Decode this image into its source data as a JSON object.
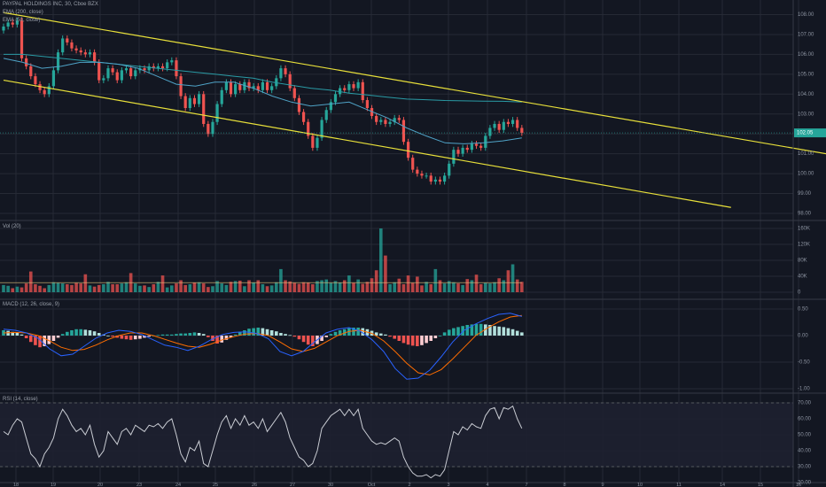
{
  "header": {
    "symbol_line": "PAYPAL HOLDINGS INC, 30, Cboe BZX",
    "ema200_label": "EMA (200, close)",
    "ema50_label": "EMA (50, close)",
    "vol_label": "Vol (20)",
    "macd_label": "MACD (12, 26, close, 9)",
    "rsi_label": "RSI (14, close)"
  },
  "colors": {
    "background": "#131722",
    "grid": "#262a35",
    "up": "#26a69a",
    "down": "#ef5350",
    "channel": "#e8e03a",
    "ema200": "#2a9ba5",
    "ema50": "#4fa3c7",
    "macd_line": "#2962ff",
    "signal_line": "#ff6d00",
    "rsi_line": "#c9ccd3",
    "price_tag": "#26a69a",
    "axis_text": "#8c93a0"
  },
  "chart_data": [
    {
      "type": "candlestick",
      "pane": "price",
      "title": "PAYPAL HOLDINGS INC, 30, Cboe BZX",
      "y_ticks": [
        108.0,
        107.0,
        106.0,
        105.0,
        104.0,
        103.0,
        102.0,
        101.0,
        100.0,
        99.0,
        98.0
      ],
      "last_price_label": "102.05",
      "x_tick_labels": [
        "18",
        "19",
        "20",
        "23",
        "24",
        "25",
        "26",
        "27",
        "30",
        "Oct",
        "2",
        "3",
        "4",
        "7",
        "8",
        "9",
        "10",
        "11",
        "14",
        "15",
        "16"
      ],
      "closes": [
        107.4,
        107.6,
        107.5,
        107.7,
        105.8,
        105.4,
        104.9,
        104.5,
        104.2,
        104.0,
        104.4,
        105.2,
        106.1,
        106.8,
        106.6,
        106.3,
        106.2,
        106.1,
        106.0,
        106.1,
        105.6,
        104.7,
        104.8,
        105.3,
        105.1,
        104.7,
        105.2,
        105.3,
        104.9,
        105.2,
        105.3,
        105.2,
        105.4,
        105.3,
        105.4,
        105.3,
        105.6,
        105.7,
        104.9,
        103.9,
        103.3,
        103.8,
        103.5,
        104.0,
        102.5,
        102.0,
        102.6,
        103.5,
        104.2,
        104.6,
        104.0,
        104.5,
        104.2,
        104.6,
        104.3,
        104.4,
        104.2,
        104.6,
        104.2,
        104.4,
        104.8,
        105.3,
        105.0,
        104.3,
        103.8,
        103.1,
        102.6,
        101.9,
        101.3,
        101.8,
        102.7,
        103.2,
        103.6,
        104.0,
        104.3,
        104.2,
        104.5,
        104.3,
        104.6,
        103.7,
        103.3,
        102.9,
        102.6,
        102.7,
        102.5,
        102.6,
        102.8,
        102.7,
        101.6,
        100.8,
        100.2,
        100.0,
        99.9,
        99.9,
        99.6,
        99.7,
        99.6,
        99.9,
        100.5,
        101.2,
        101.0,
        101.3,
        101.2,
        101.5,
        101.4,
        101.3,
        101.9,
        102.3,
        102.5,
        102.2,
        102.6,
        102.5,
        102.7,
        102.3,
        102.05
      ],
      "ema200": [
        106.0,
        106.0,
        105.9,
        105.8,
        105.7,
        105.6,
        105.5,
        105.4,
        105.3,
        105.2,
        105.1,
        105.0,
        104.9,
        104.8,
        104.6,
        104.45,
        104.3,
        104.2,
        104.05,
        103.95,
        103.85,
        103.75,
        103.72,
        103.68,
        103.66,
        103.65,
        103.64,
        103.6
      ],
      "ema50": [
        105.8,
        105.6,
        105.3,
        105.4,
        105.6,
        105.6,
        105.5,
        105.3,
        104.9,
        104.5,
        104.4,
        104.6,
        104.6,
        104.3,
        103.9,
        103.6,
        103.4,
        103.5,
        103.6,
        103.2,
        102.8,
        102.3,
        101.9,
        101.55,
        101.5,
        101.55,
        101.65,
        101.8
      ],
      "channel_upper": {
        "start": [
          0,
          108.1
        ],
        "end": [
          186,
          100.8
        ]
      },
      "channel_lower": {
        "start": [
          0,
          104.7
        ],
        "end": [
          160,
          98.3
        ]
      }
    },
    {
      "type": "bar",
      "pane": "volume",
      "title": "Vol (20)",
      "y_ticks": [
        "160K",
        "120K",
        "80K",
        "40K",
        "0"
      ],
      "values": [
        18,
        16,
        10,
        14,
        12,
        22,
        52,
        20,
        16,
        10,
        18,
        25,
        23,
        22,
        20,
        18,
        23,
        22,
        45,
        17,
        14,
        18,
        20,
        26,
        20,
        20,
        22,
        25,
        48,
        22,
        16,
        17,
        13,
        20,
        26,
        42,
        12,
        17,
        22,
        30,
        18,
        20,
        24,
        25,
        22,
        13,
        15,
        28,
        22,
        18,
        26,
        28,
        29,
        15,
        30,
        24,
        30,
        20,
        15,
        17,
        25,
        58,
        30,
        27,
        23,
        21,
        25,
        24,
        20,
        28,
        30,
        32,
        23,
        28,
        24,
        30,
        42,
        23,
        32,
        21,
        26,
        35,
        55,
        160,
        92,
        20,
        25,
        34,
        20,
        42,
        23,
        39,
        17,
        26,
        20,
        58,
        30,
        22,
        28,
        25,
        22,
        18,
        33,
        30,
        44,
        20,
        23,
        22,
        25,
        35,
        30,
        55,
        70,
        32,
        26
      ],
      "ma_level": 24
    },
    {
      "type": "bar",
      "pane": "macd",
      "title": "MACD (12, 26, close, 9)",
      "y_ticks": [
        "0.50",
        "0.00",
        "-0.50",
        "-1.00"
      ],
      "histogram": [
        0.1,
        0.09,
        0.07,
        0.05,
        0.02,
        -0.05,
        -0.12,
        -0.18,
        -0.22,
        -0.2,
        -0.16,
        -0.1,
        -0.04,
        0.03,
        0.07,
        0.1,
        0.12,
        0.12,
        0.11,
        0.1,
        0.08,
        0.05,
        0.02,
        0.0,
        -0.02,
        -0.04,
        -0.06,
        -0.07,
        -0.08,
        -0.07,
        -0.06,
        -0.04,
        -0.02,
        0.0,
        0.01,
        0.02,
        0.02,
        0.02,
        0.03,
        0.04,
        0.04,
        0.05,
        0.06,
        0.05,
        0.03,
        -0.03,
        -0.1,
        -0.15,
        -0.13,
        -0.08,
        -0.03,
        0.02,
        0.07,
        0.1,
        0.13,
        0.14,
        0.15,
        0.14,
        0.12,
        0.1,
        0.08,
        0.05,
        0.03,
        0.01,
        -0.02,
        -0.07,
        -0.12,
        -0.17,
        -0.2,
        -0.16,
        -0.1,
        -0.03,
        0.03,
        0.07,
        0.1,
        0.12,
        0.14,
        0.15,
        0.15,
        0.14,
        0.12,
        0.09,
        0.06,
        0.04,
        0.02,
        -0.02,
        -0.06,
        -0.1,
        -0.14,
        -0.17,
        -0.19,
        -0.2,
        -0.18,
        -0.14,
        -0.1,
        -0.05,
        0.0,
        0.06,
        0.11,
        0.14,
        0.16,
        0.18,
        0.2,
        0.21,
        0.22,
        0.22,
        0.21,
        0.2,
        0.18,
        0.17,
        0.16,
        0.14,
        0.12,
        0.09,
        0.06
      ],
      "macd_line": [
        0.12,
        0.1,
        0.05,
        -0.05,
        -0.25,
        -0.38,
        -0.35,
        -0.2,
        -0.05,
        0.05,
        0.1,
        0.08,
        0.02,
        -0.08,
        -0.18,
        -0.22,
        -0.28,
        -0.2,
        -0.08,
        0.02,
        0.06,
        0.07,
        0.04,
        -0.06,
        -0.3,
        -0.38,
        -0.3,
        -0.12,
        0.05,
        0.12,
        0.15,
        0.08,
        -0.08,
        -0.3,
        -0.62,
        -0.82,
        -0.8,
        -0.65,
        -0.4,
        -0.12,
        0.1,
        0.22,
        0.32,
        0.4,
        0.42,
        0.36
      ],
      "signal_line": [
        0.05,
        0.06,
        0.05,
        0.0,
        -0.1,
        -0.22,
        -0.28,
        -0.26,
        -0.18,
        -0.08,
        0.0,
        0.05,
        0.05,
        0.0,
        -0.07,
        -0.14,
        -0.2,
        -0.22,
        -0.16,
        -0.08,
        -0.02,
        0.03,
        0.04,
        0.0,
        -0.12,
        -0.25,
        -0.3,
        -0.24,
        -0.12,
        0.0,
        0.08,
        0.1,
        0.04,
        -0.1,
        -0.3,
        -0.52,
        -0.7,
        -0.74,
        -0.64,
        -0.44,
        -0.22,
        0.0,
        0.14,
        0.26,
        0.35,
        0.38
      ]
    },
    {
      "type": "line",
      "pane": "rsi",
      "title": "RSI (14, close)",
      "y_ticks": [
        "70.00",
        "60.00",
        "50.00",
        "40.00",
        "30.00",
        "20.00"
      ],
      "band": [
        30,
        70
      ],
      "values": [
        52,
        50,
        56,
        60,
        58,
        48,
        38,
        35,
        30,
        38,
        42,
        48,
        60,
        66,
        62,
        56,
        52,
        54,
        50,
        56,
        44,
        36,
        40,
        52,
        48,
        44,
        52,
        54,
        50,
        56,
        54,
        52,
        56,
        55,
        57,
        54,
        58,
        60,
        50,
        38,
        33,
        42,
        40,
        46,
        32,
        30,
        40,
        50,
        58,
        62,
        54,
        60,
        56,
        62,
        56,
        58,
        54,
        60,
        52,
        56,
        60,
        64,
        58,
        48,
        42,
        36,
        34,
        30,
        32,
        40,
        54,
        58,
        62,
        64,
        66,
        62,
        66,
        62,
        66,
        54,
        50,
        46,
        44,
        45,
        44,
        46,
        48,
        46,
        36,
        30,
        26,
        24,
        24,
        25,
        23,
        25,
        24,
        28,
        40,
        52,
        50,
        55,
        53,
        57,
        55,
        54,
        62,
        66,
        67,
        60,
        67,
        66,
        68,
        60,
        54
      ]
    }
  ]
}
